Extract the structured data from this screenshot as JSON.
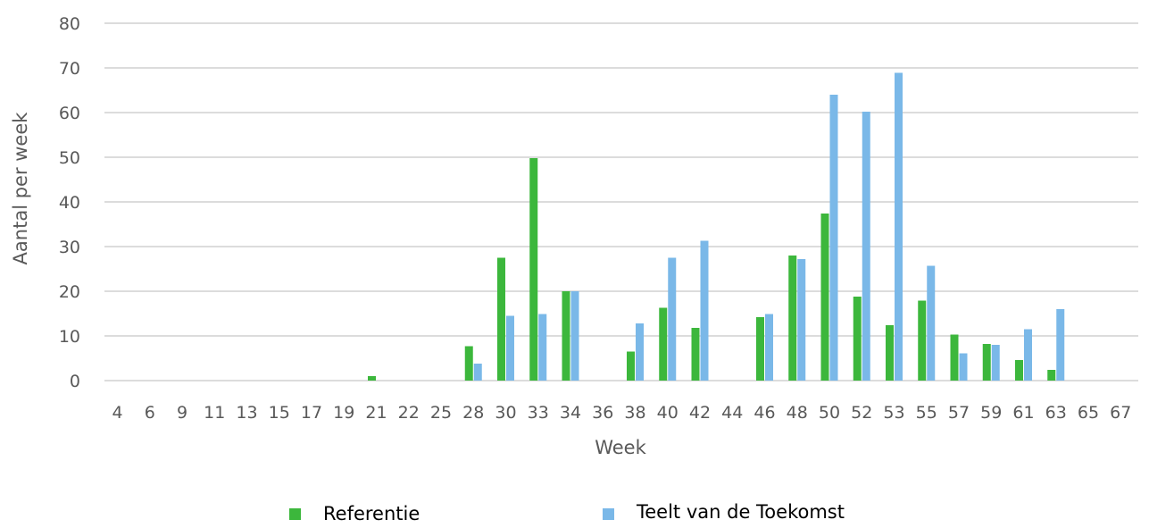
{
  "chart_data": {
    "type": "bar",
    "xlabel": "Week",
    "ylabel": "Aantal per week",
    "ylim": [
      0,
      80
    ],
    "yticks": [
      0,
      10,
      20,
      30,
      40,
      50,
      60,
      70,
      80
    ],
    "grid": true,
    "legend_position": "bottom",
    "categories": [
      "4",
      "6",
      "9",
      "11",
      "13",
      "15",
      "17",
      "19",
      "21",
      "22",
      "25",
      "28",
      "30",
      "33",
      "34",
      "36",
      "38",
      "40",
      "42",
      "44",
      "46",
      "48",
      "50",
      "52",
      "53",
      "55",
      "57",
      "59",
      "61",
      "63",
      "65",
      "67"
    ],
    "series": [
      {
        "name": "Referentie",
        "color": "#3cb73c",
        "values": [
          0,
          0,
          0,
          0,
          0,
          0,
          0,
          0,
          1,
          0,
          0,
          7.7,
          27.5,
          49.8,
          20,
          0,
          6.5,
          16.3,
          11.8,
          0,
          14.2,
          28,
          37.4,
          18.8,
          12.4,
          17.9,
          10.3,
          8.2,
          4.6,
          2.4,
          0,
          0
        ]
      },
      {
        "name": "Teelt van de Toekomst",
        "color": "#7ab8e8",
        "values": [
          0,
          0,
          0,
          0,
          0,
          0,
          0,
          0,
          0,
          0,
          0,
          3.8,
          14.5,
          14.9,
          20,
          0,
          12.8,
          27.5,
          31.3,
          0,
          14.9,
          27.2,
          64,
          60.2,
          68.9,
          25.7,
          6.1,
          8,
          11.5,
          16,
          0,
          0
        ]
      }
    ]
  }
}
